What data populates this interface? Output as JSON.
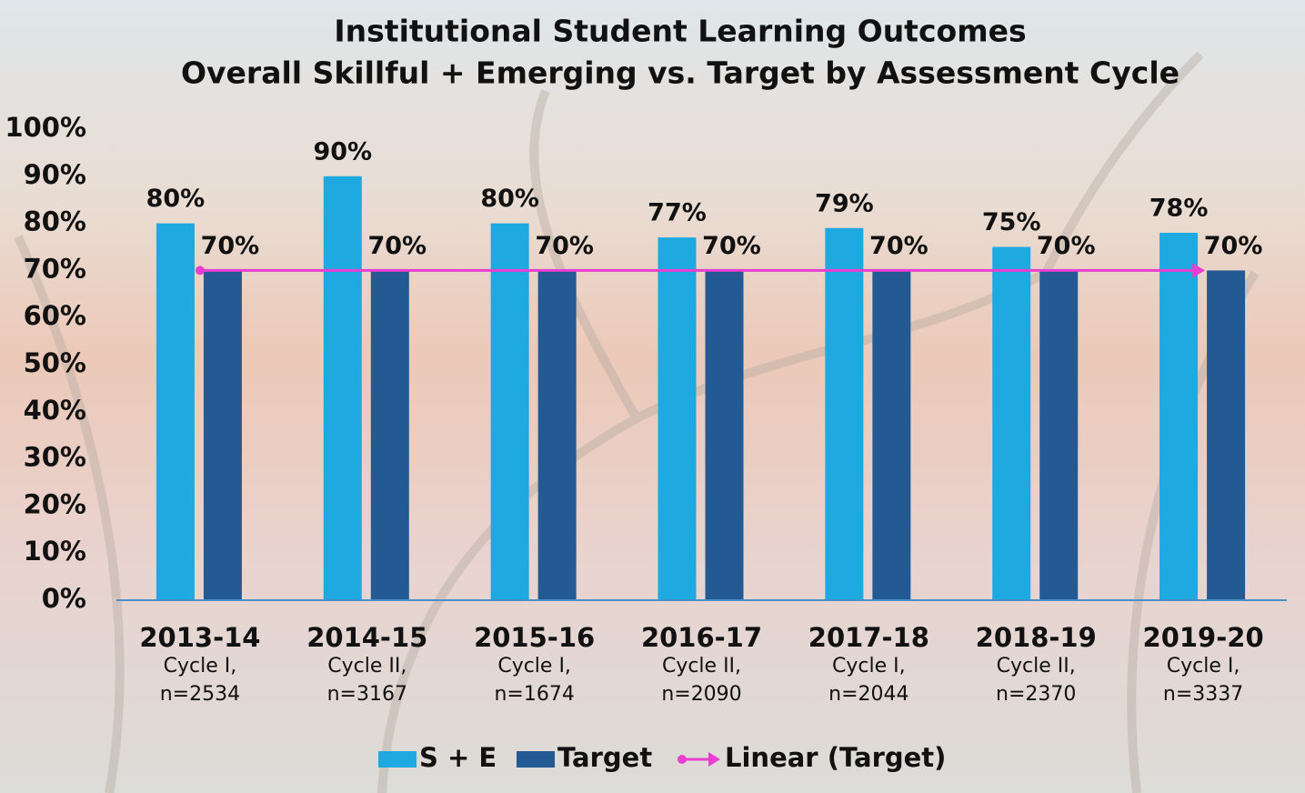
{
  "chart_data": {
    "type": "bar",
    "title": [
      "Institutional Student Learning Outcomes",
      "Overall Skillful + Emerging vs. Target by Assessment Cycle"
    ],
    "categories": [
      "2013-14",
      "2014-15",
      "2015-16",
      "2016-17",
      "2017-18",
      "2018-19",
      "2019-20"
    ],
    "category_sublabels": [
      [
        "Cycle I,",
        "n=2534"
      ],
      [
        "Cycle II,",
        "n=3167"
      ],
      [
        "Cycle I,",
        "n=1674"
      ],
      [
        "Cycle II,",
        "n=2090"
      ],
      [
        "Cycle I,",
        "n=2044"
      ],
      [
        "Cycle II,",
        "n=2370"
      ],
      [
        "Cycle I,",
        "n=3337"
      ]
    ],
    "series": [
      {
        "name": "S + E",
        "color": "#1fa9e1",
        "values": [
          80,
          90,
          80,
          77,
          79,
          75,
          78
        ],
        "value_labels": [
          "80%",
          "90%",
          "80%",
          "77%",
          "79%",
          "75%",
          "78%"
        ]
      },
      {
        "name": "Target",
        "color": "#235a93",
        "values": [
          70,
          70,
          70,
          70,
          70,
          70,
          70
        ],
        "value_labels": [
          "70%",
          "70%",
          "70%",
          "70%",
          "70%",
          "70%",
          "70%"
        ]
      }
    ],
    "trendline": {
      "name": "Linear (Target)",
      "color": "#e83fd0",
      "values": [
        70,
        70,
        70,
        70,
        70,
        70,
        70
      ]
    },
    "ylim": [
      0,
      100
    ],
    "yticks": [
      {
        "value": 0,
        "label": "0%"
      },
      {
        "value": 10,
        "label": "10%"
      },
      {
        "value": 20,
        "label": "20%"
      },
      {
        "value": 30,
        "label": "30%"
      },
      {
        "value": 40,
        "label": "40%"
      },
      {
        "value": 50,
        "label": "50%"
      },
      {
        "value": 60,
        "label": "60%"
      },
      {
        "value": 70,
        "label": "70%"
      },
      {
        "value": 80,
        "label": "80%"
      },
      {
        "value": 90,
        "label": "90%"
      },
      {
        "value": 100,
        "label": "100%"
      }
    ],
    "grid": false,
    "legend": "bottom"
  }
}
